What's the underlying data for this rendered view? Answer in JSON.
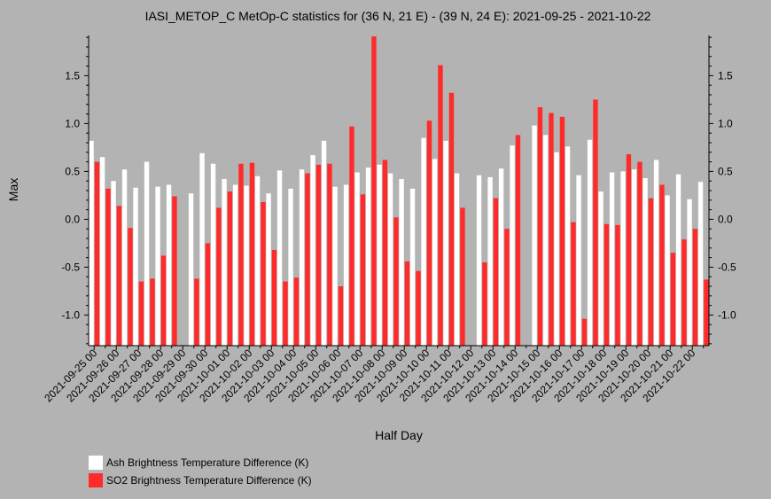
{
  "chart_data": {
    "type": "bar",
    "title": "IASI_METOP_C MetOp-C statistics for (36 N, 21 E) - (39 N, 24 E): 2021-09-25 - 2021-10-22",
    "xlabel": "Half Day",
    "ylabel": "Max",
    "ylim": [
      -1.32,
      1.92
    ],
    "yticks": [
      -1.0,
      -0.5,
      0.0,
      0.5,
      1.0,
      1.5
    ],
    "ytick_labels": [
      "-1.0",
      "-0.5",
      "0.0",
      "0.5",
      "1.0",
      "1.5"
    ],
    "grid": false,
    "legend_position": "bottom-left",
    "x_tick_labels": [
      "2021-09-25 00",
      "2021-09-26 00",
      "2021-09-27 00",
      "2021-09-28 00",
      "2021-09-29 00",
      "2021-09-30 00",
      "2021-10-01 00",
      "2021-10-02 00",
      "2021-10-03 00",
      "2021-10-04 00",
      "2021-10-05 00",
      "2021-10-06 00",
      "2021-10-07 00",
      "2021-10-08 00",
      "2021-10-09 00",
      "2021-10-10 00",
      "2021-10-11 00",
      "2021-10-12 00",
      "2021-10-13 00",
      "2021-10-14 00",
      "2021-10-15 00",
      "2021-10-16 00",
      "2021-10-17 00",
      "2021-10-18 00",
      "2021-10-19 00",
      "2021-10-20 00",
      "2021-10-21 00",
      "2021-10-22 00"
    ],
    "series": [
      {
        "name": "Ash Brightness Temperature Difference (K)",
        "color": "#ffffff",
        "values": [
          0.82,
          0.65,
          0.4,
          0.52,
          0.33,
          0.6,
          0.34,
          0.36,
          null,
          0.27,
          0.69,
          0.58,
          0.42,
          0.36,
          0.35,
          0.45,
          0.27,
          0.51,
          0.32,
          0.52,
          0.67,
          0.82,
          0.34,
          0.36,
          0.49,
          0.54,
          0.57,
          0.48,
          0.42,
          0.32,
          0.85,
          0.63,
          0.82,
          0.48,
          null,
          0.46,
          0.44,
          0.53,
          0.77,
          null,
          0.98,
          0.88,
          0.7,
          0.76,
          0.46,
          0.83,
          0.29,
          0.49,
          0.5,
          0.52,
          0.43,
          0.62,
          0.25,
          0.47,
          0.21,
          0.39
        ]
      },
      {
        "name": "SO2 Brightness Temperature Difference (K)",
        "color": "#ff2a2a",
        "values": [
          0.6,
          0.32,
          0.14,
          -0.09,
          -0.65,
          -0.62,
          -0.38,
          0.24,
          null,
          -0.62,
          -0.25,
          0.12,
          0.29,
          0.58,
          0.59,
          0.18,
          -0.32,
          -0.65,
          -0.61,
          0.48,
          0.57,
          0.58,
          -0.7,
          0.97,
          0.26,
          1.91,
          0.62,
          0.02,
          -0.44,
          -0.54,
          1.03,
          1.61,
          1.32,
          0.12,
          null,
          -0.45,
          0.22,
          -0.1,
          0.88,
          null,
          1.17,
          1.11,
          1.07,
          -0.03,
          -1.04,
          1.25,
          -0.05,
          -0.06,
          0.68,
          0.6,
          0.22,
          0.36,
          -0.35,
          -0.21,
          -0.1,
          -0.63
        ]
      }
    ]
  }
}
